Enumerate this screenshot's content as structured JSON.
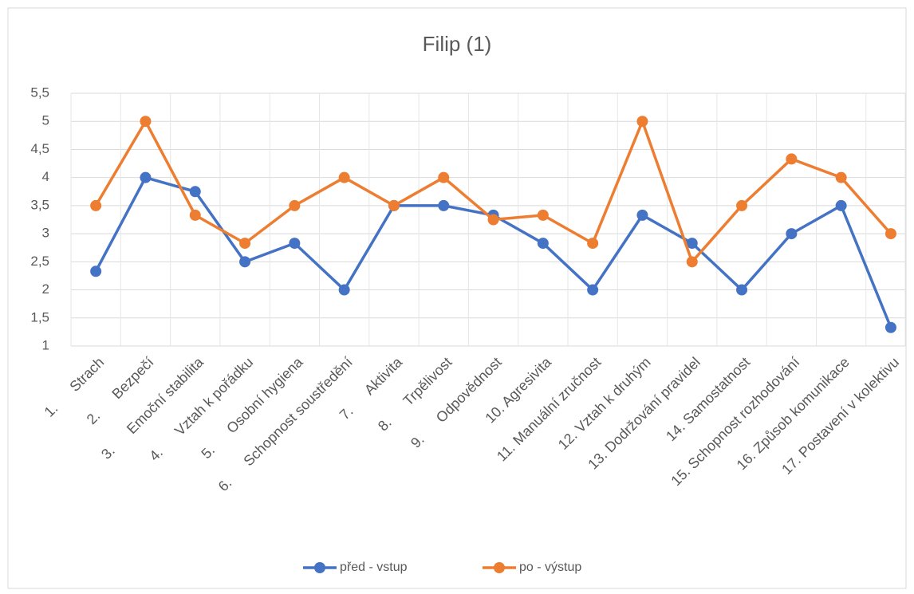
{
  "chart_data": {
    "type": "line",
    "title": "Filip (1)",
    "categories": [
      "1.      Strach",
      "2.      Bezpečí",
      "3.      Emoční stabilita",
      "4.      Vztah k pořádku",
      "5.      Osobní hygiena",
      "6.      Schopnost soustředění",
      "7.      Aktivita",
      "8.      Trpělivost",
      "9.      Odpovědnost",
      "10. Agresivita",
      "11. Manuální zručnost",
      "12. Vztah k druhým",
      "13. Dodržování pravidel",
      "14. Samostatnost",
      "15. Schopnost rozhodování",
      "16. Způsob komunikace",
      "17. Postavení v kolektivu"
    ],
    "series": [
      {
        "name": "před - vstup",
        "color": "#4472c4",
        "values": [
          2.33,
          4,
          3.75,
          2.5,
          2.83,
          2,
          3.5,
          3.5,
          3.33,
          2.83,
          2,
          3.33,
          2.83,
          2,
          3,
          3.5,
          1.33
        ]
      },
      {
        "name": "po - výstup",
        "color": "#ed7d31",
        "values": [
          3.5,
          5,
          3.33,
          2.83,
          3.5,
          4,
          3.5,
          4,
          3.25,
          3.33,
          2.83,
          5,
          2.5,
          3.5,
          4.33,
          4,
          3
        ]
      }
    ],
    "ylim": [
      1,
      5.5
    ],
    "yticks": [
      1,
      {
        "value": 1.5,
        "label": "1,5"
      },
      2,
      {
        "value": 2.5,
        "label": "2,5"
      },
      3,
      {
        "value": 3.5,
        "label": "3,5"
      },
      4,
      {
        "value": 4.5,
        "label": "4,5"
      },
      5,
      {
        "value": 5.5,
        "label": "5,5"
      }
    ],
    "grid": true,
    "legend": "bottom"
  }
}
